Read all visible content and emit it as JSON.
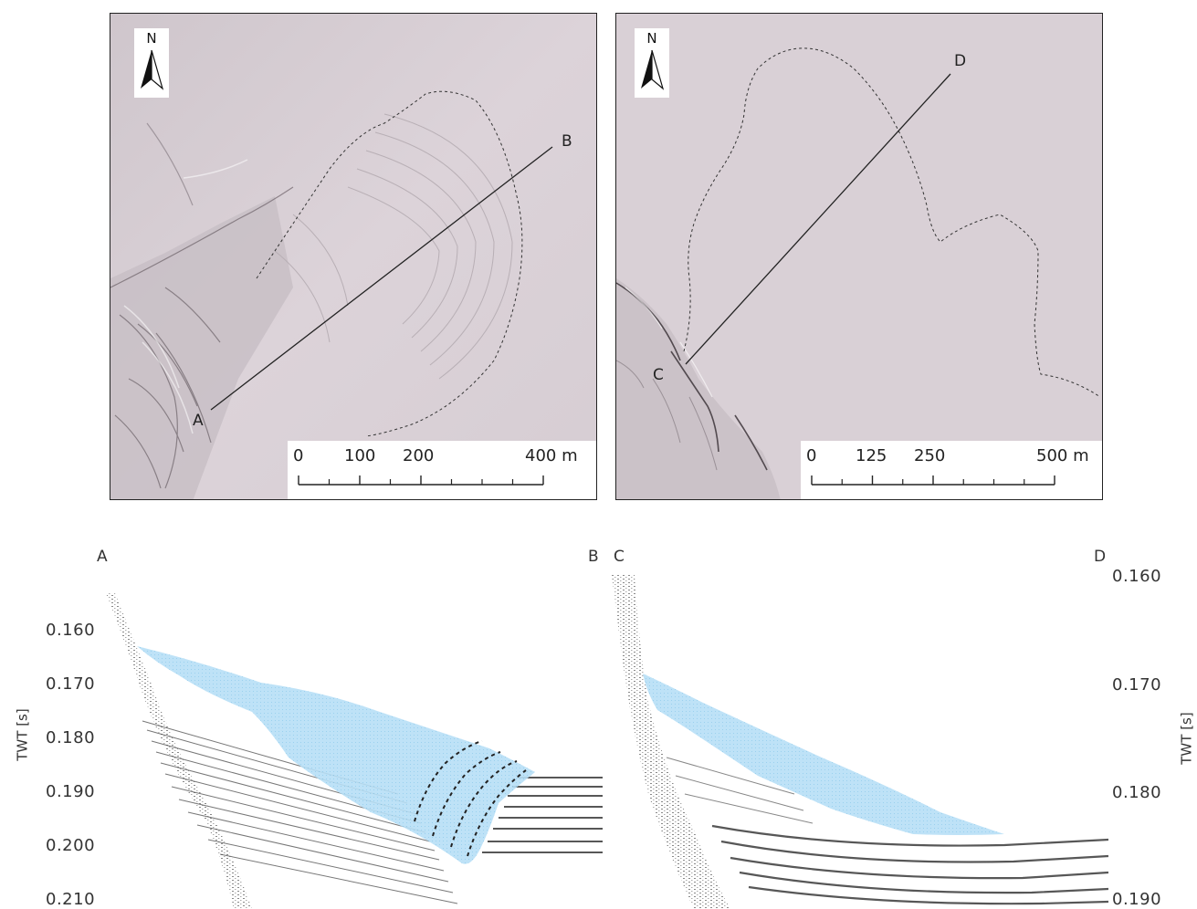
{
  "map_left": {
    "north": "N",
    "point_start": "A",
    "point_end": "B",
    "scale_labels": [
      "0",
      "100",
      "200",
      "400 m"
    ]
  },
  "map_right": {
    "north": "N",
    "point_start": "C",
    "point_end": "D",
    "scale_labels": [
      "0",
      "125",
      "250",
      "500 m"
    ]
  },
  "profile_left": {
    "start_label": "A",
    "end_label": "B",
    "axis_title": "TWT [s]",
    "y_ticks": [
      "0.160",
      "0.170",
      "0.180",
      "0.190",
      "0.200",
      "0.210"
    ]
  },
  "profile_right": {
    "start_label": "C",
    "end_label": "D",
    "axis_title": "TWT [s]",
    "y_ticks": [
      "0.160",
      "0.170",
      "0.180",
      "0.190"
    ]
  },
  "colors": {
    "map_background": "#d9d0d6",
    "slide_fill": "#a9d8f3",
    "reflector": "#3a3a3a"
  }
}
